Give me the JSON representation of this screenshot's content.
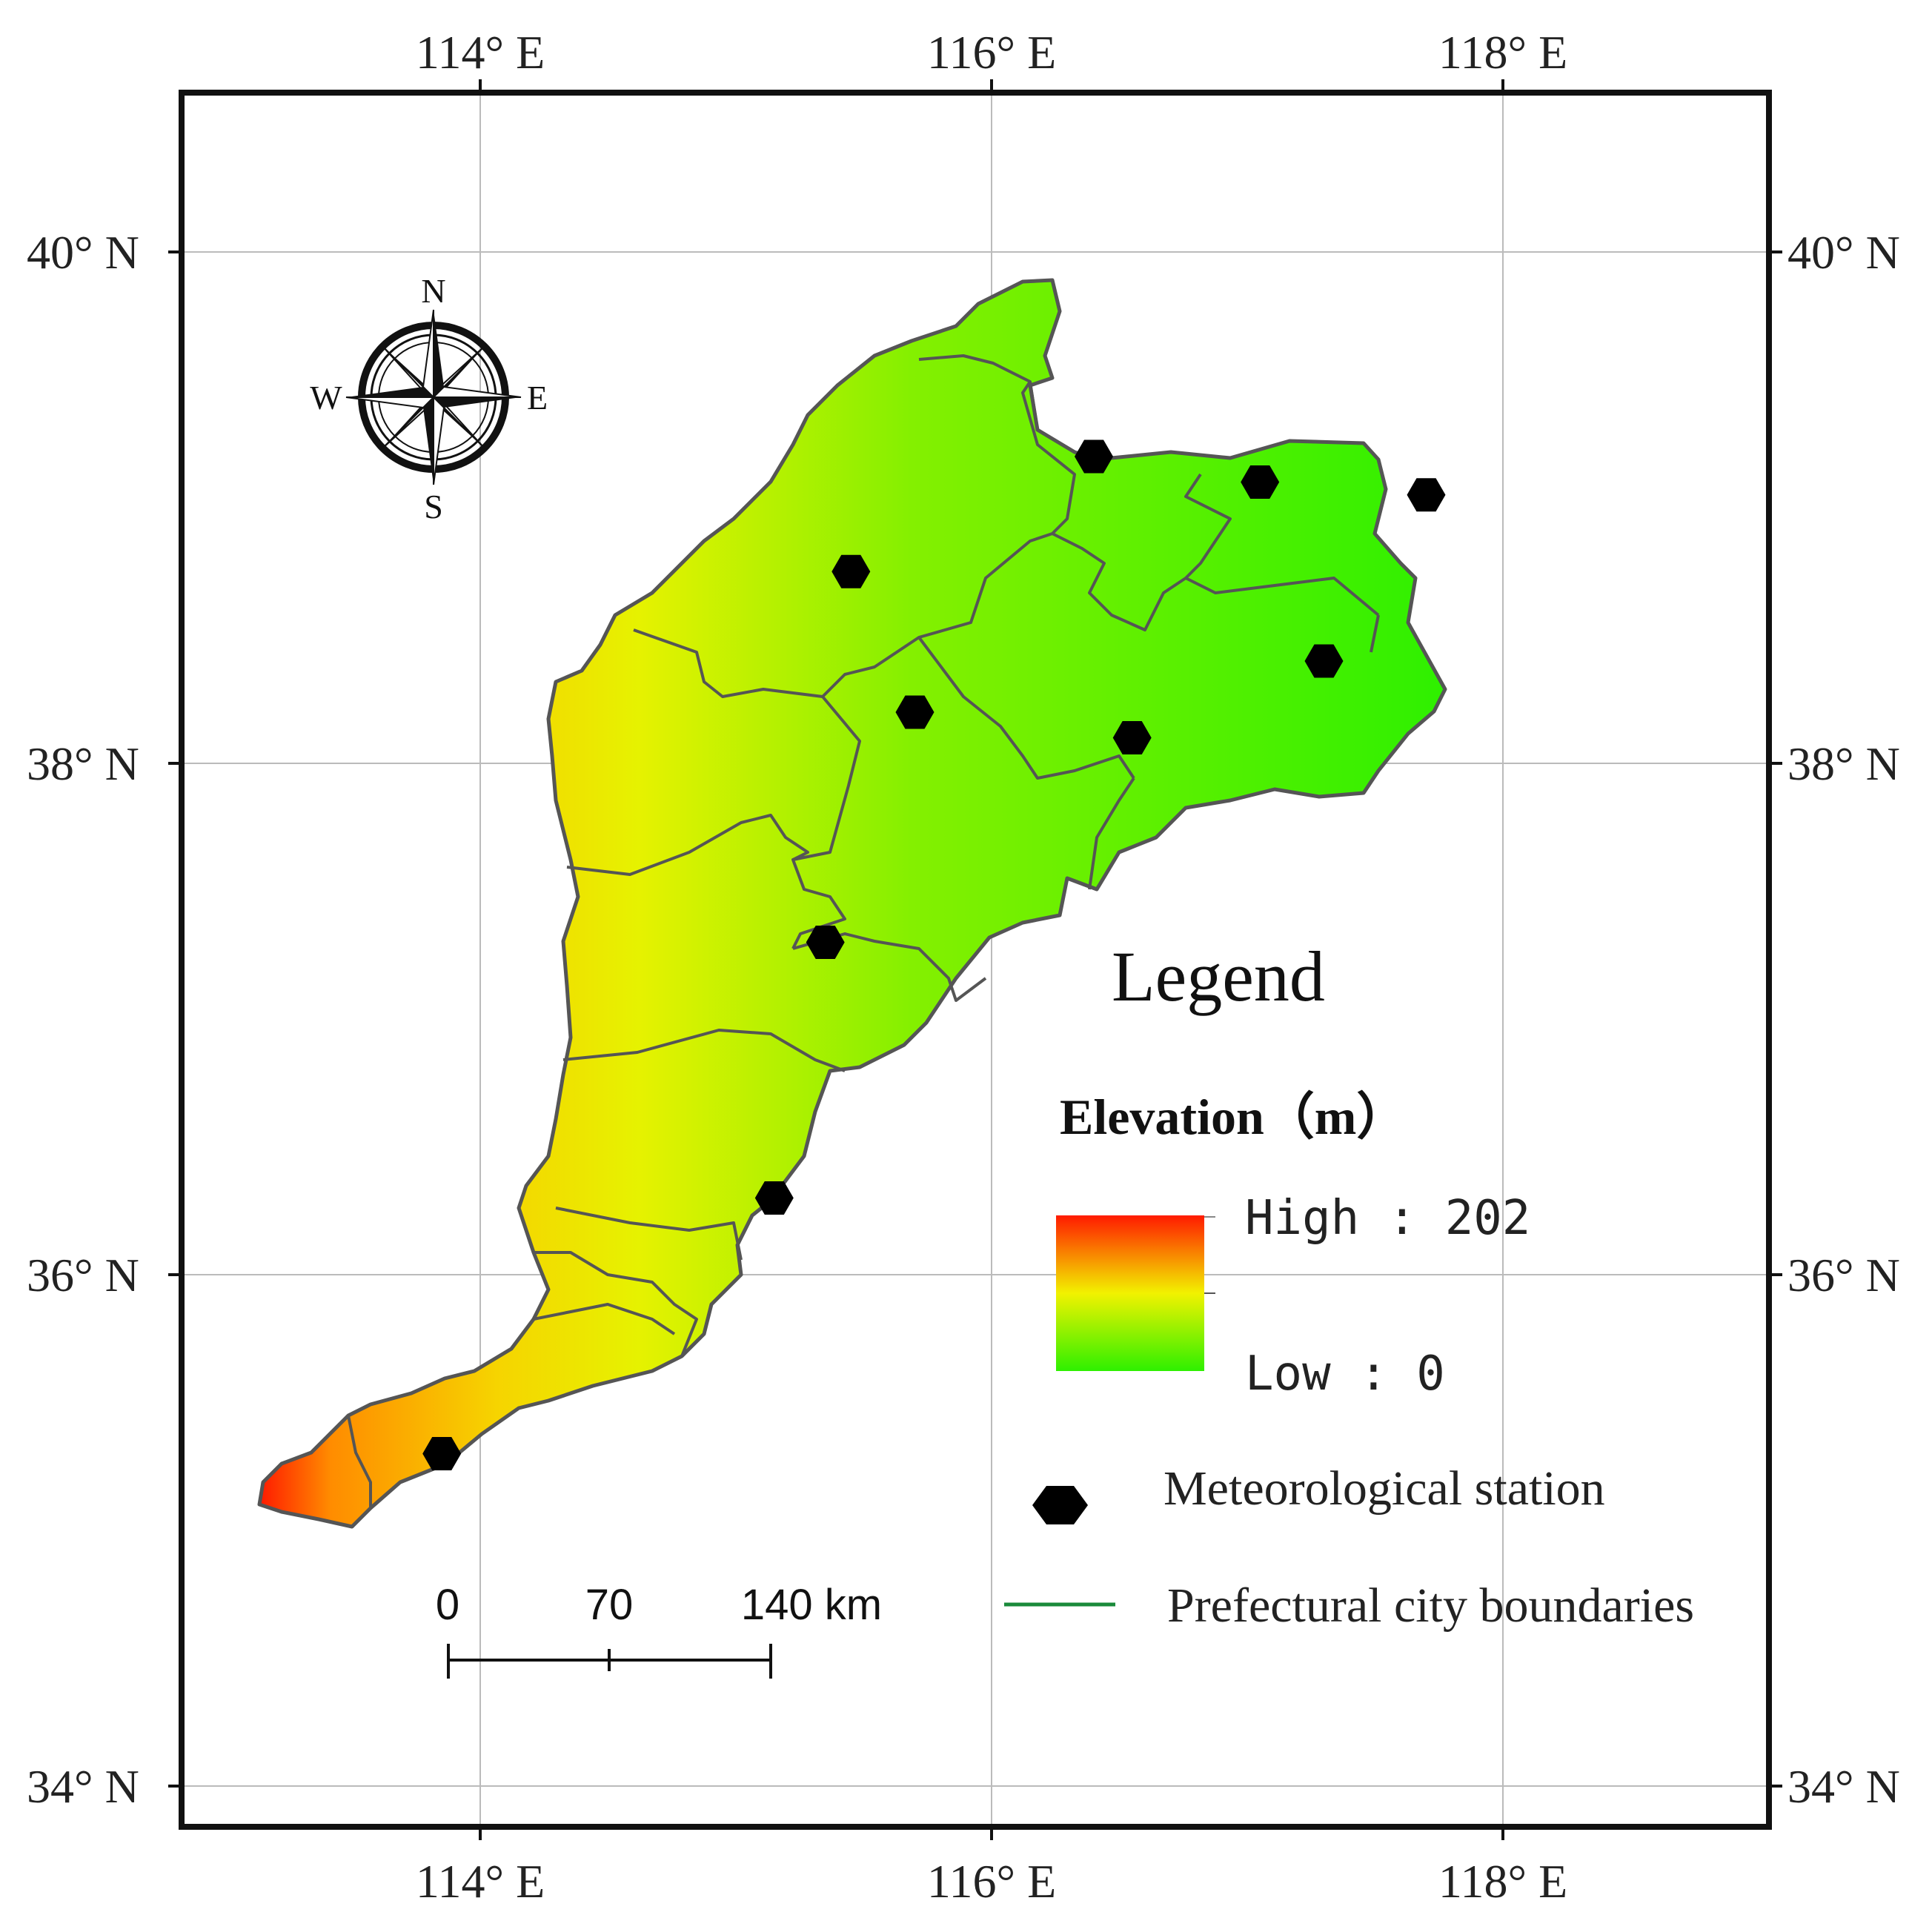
{
  "map": {
    "ticks_lon": [
      {
        "lon": 114,
        "label": "114° E"
      },
      {
        "lon": 116,
        "label": "116° E"
      },
      {
        "lon": 118,
        "label": "118° E"
      }
    ],
    "ticks_lat": [
      {
        "lat": 40,
        "label": "40° N"
      },
      {
        "lat": 38,
        "label": "38° N"
      },
      {
        "lat": 36,
        "label": "36° N"
      },
      {
        "lat": 34,
        "label": "34° N"
      }
    ],
    "stations": [
      {
        "lon": 116.4,
        "lat": 39.2
      },
      {
        "lon": 117.05,
        "lat": 39.1
      },
      {
        "lon": 117.7,
        "lat": 39.05
      },
      {
        "lon": 115.45,
        "lat": 38.75
      },
      {
        "lon": 117.3,
        "lat": 38.4
      },
      {
        "lon": 115.7,
        "lat": 38.2
      },
      {
        "lon": 116.55,
        "lat": 38.1
      },
      {
        "lon": 115.35,
        "lat": 37.3
      },
      {
        "lon": 115.15,
        "lat": 36.3
      },
      {
        "lon": 113.85,
        "lat": 35.3
      }
    ],
    "colors": {
      "high": "#ff1a00",
      "mid": "#f2f200",
      "low": "#2ef000",
      "boundary": "#555555",
      "boundary_legend": "#1a8a3a",
      "grid": "#bbbbbb",
      "frame": "#111111",
      "station": "#000000"
    }
  },
  "compass": {
    "n": "N",
    "e": "E",
    "s": "S",
    "w": "W"
  },
  "legend": {
    "title": "Legend",
    "elevation_title": "Elevation（m）",
    "high": "High : 202",
    "low": "Low  : 0",
    "station": "Meteorological station",
    "boundaries": "Prefectural city boundaries"
  },
  "scale_bar": {
    "label_0": "0",
    "label_1": "70",
    "label_2": "140 km"
  }
}
